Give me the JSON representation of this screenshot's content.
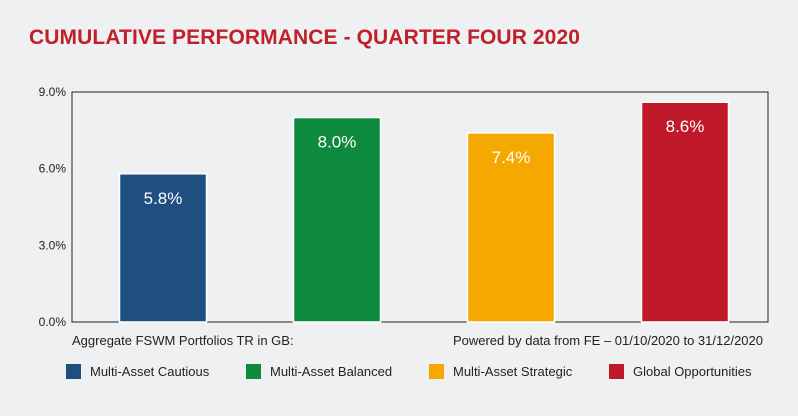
{
  "chart_data": {
    "type": "bar",
    "title": "CUMULATIVE PERFORMANCE - QUARTER FOUR 2020",
    "categories": [
      "Multi-Asset Cautious",
      "Multi-Asset Balanced",
      "Multi-Asset Strategic",
      "Global Opportunities"
    ],
    "values": [
      5.8,
      8.0,
      7.4,
      8.6
    ],
    "value_labels": [
      "5.8%",
      "8.0%",
      "7.4%",
      "8.6%"
    ],
    "colors": [
      "#1f4e80",
      "#0d8a3e",
      "#f5a800",
      "#c0192a"
    ],
    "ylim": [
      0,
      9
    ],
    "yticks": [
      0,
      3,
      6,
      9
    ],
    "ytick_labels": [
      "0.0%",
      "3.0%",
      "6.0%",
      "9.0%"
    ],
    "xlabel": "",
    "ylabel": "",
    "grid": false,
    "legend_position": "bottom",
    "footnote_left": "Aggregate FSWM Portfolios TR in GB:",
    "footnote_right": "Powered by data from FE – 01/10/2020 to 31/12/2020"
  }
}
